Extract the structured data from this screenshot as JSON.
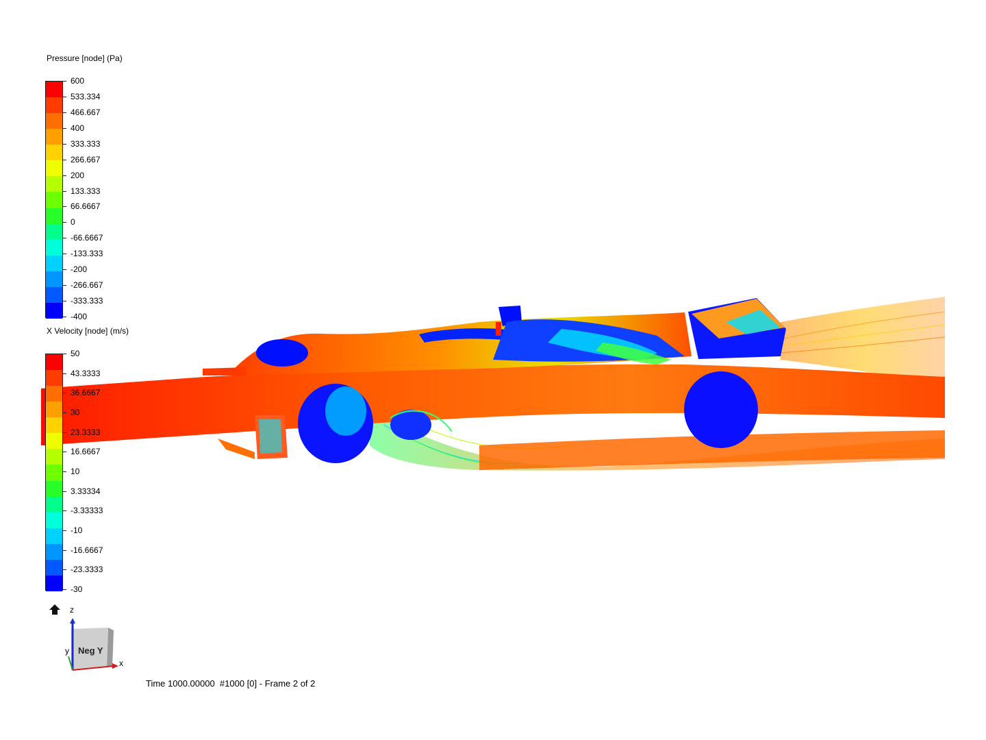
{
  "legends": [
    {
      "id": "pressure",
      "title": "Pressure [node] (Pa)",
      "ticks": [
        "600",
        "533.334",
        "466.667",
        "400",
        "333.333",
        "266.667",
        "200",
        "133.333",
        "66.6667",
        "0",
        "-66.6667",
        "-133.333",
        "-200",
        "-266.667",
        "-333.333",
        "-400"
      ]
    },
    {
      "id": "x-velocity",
      "title": "X Velocity [node] (m/s)",
      "ticks": [
        "50",
        "43.3333",
        "36.6667",
        "30",
        "23.3333",
        "16.6667",
        "10",
        "3.33334",
        "-3.33333",
        "-10",
        "-16.6667",
        "-23.3333",
        "-30"
      ]
    }
  ],
  "colormap": [
    "#ff0000",
    "#ff3c00",
    "#ff6e00",
    "#ffa000",
    "#ffd200",
    "#f0ff00",
    "#b4ff00",
    "#6eff00",
    "#28ff28",
    "#00ff8c",
    "#00ffdc",
    "#00d2ff",
    "#0096ff",
    "#005aff",
    "#0000ff"
  ],
  "orientation": {
    "view_label": "Neg Y",
    "axis_z": "z",
    "axis_x": "x",
    "axis_y": "y",
    "home_icon": "home-icon"
  },
  "status": {
    "time_label": "Time 1000.00000  #1000 [0] - Frame 2 of 2"
  }
}
